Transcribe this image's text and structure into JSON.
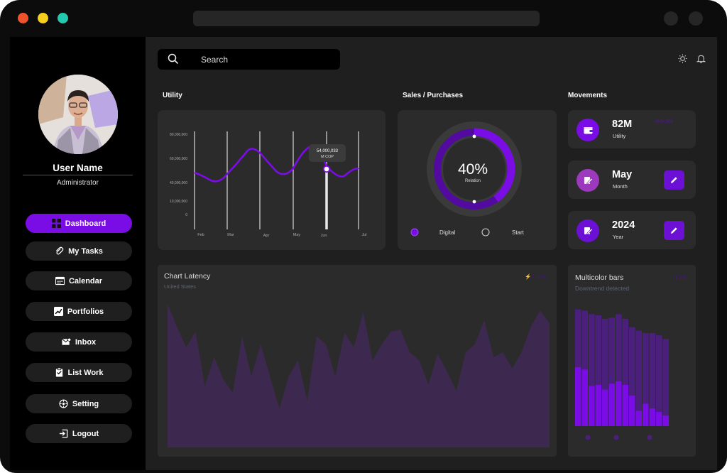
{
  "sidebar": {
    "user_name": "User Name",
    "role": "Administrator",
    "nav": [
      {
        "label": "Dashboard",
        "icon": "grid-icon",
        "active": true
      },
      {
        "label": "My Tasks",
        "icon": "paperclip-icon",
        "active": false
      },
      {
        "label": "Calendar",
        "icon": "calendar-icon",
        "active": false
      },
      {
        "label": "Portfolios",
        "icon": "chart-icon",
        "active": false
      },
      {
        "label": "Inbox",
        "icon": "mail-icon",
        "active": false
      },
      {
        "label": "List Work",
        "icon": "clipboard-icon",
        "active": false
      },
      {
        "label": "Setting",
        "icon": "settings-icon",
        "active": false
      },
      {
        "label": "Logout",
        "icon": "logout-icon",
        "active": false
      }
    ]
  },
  "header": {
    "search_placeholder": "Search",
    "icons": [
      "sun-icon",
      "bell-icon"
    ]
  },
  "utility": {
    "title": "Utility",
    "tooltip_value": "54,000,033",
    "tooltip_unit": "M COP",
    "chart_data": {
      "type": "line",
      "x": [
        "Feb",
        "Mar",
        "Apr",
        "May",
        "Jun",
        "Jul"
      ],
      "y_ticks": [
        "80,000,000",
        "60,000,000",
        "40,000,000",
        "10,000,000",
        "0"
      ],
      "highlighted": "Jun"
    }
  },
  "sales": {
    "title": "Sales / Purchases",
    "percent": "40%",
    "label": "Relation",
    "progress": 0.4,
    "legend": [
      "Digital",
      "Start"
    ]
  },
  "movements": {
    "title": "Movements",
    "items": [
      {
        "value": "82M",
        "sub": "Utility",
        "badge": "+800,000",
        "icon": "wallet-icon",
        "icon_color": "#7a0ce6"
      },
      {
        "value": "May",
        "sub": "Month",
        "icon": "edit-doc-icon",
        "icon_color": "#9c39bd"
      },
      {
        "value": "2024",
        "sub": "Year",
        "icon": "edit-doc-icon",
        "icon_color": "#6d10d6"
      }
    ]
  },
  "latency": {
    "title": "Chart Latency",
    "subtitle": "United States",
    "badge": "1.3ms",
    "chart_data": {
      "type": "area",
      "values": [
        0.89,
        0.75,
        0.62,
        0.72,
        0.38,
        0.56,
        0.42,
        0.34,
        0.69,
        0.44,
        0.64,
        0.44,
        0.24,
        0.44,
        0.54,
        0.29,
        0.69,
        0.64,
        0.44,
        0.71,
        0.62,
        0.84,
        0.54,
        0.64,
        0.72,
        0.73,
        0.59,
        0.54,
        0.39,
        0.58,
        0.47,
        0.35,
        0.59,
        0.64,
        0.79,
        0.56,
        0.59,
        0.49,
        0.59,
        0.75,
        0.85,
        0.77
      ]
    }
  },
  "multicolor": {
    "title": "Multicolor bars",
    "subtitle": "Downtrend detected",
    "badge": "-12$",
    "chart_data": {
      "type": "bar",
      "series": [
        {
          "values": [
            0.99,
            0.98,
            0.95,
            0.94,
            0.91,
            0.92,
            0.95,
            0.91,
            0.84,
            0.81,
            0.79,
            0.79,
            0.77,
            0.74
          ]
        },
        {
          "values": [
            0.5,
            0.48,
            0.34,
            0.35,
            0.31,
            0.36,
            0.38,
            0.35,
            0.26,
            0.13,
            0.19,
            0.15,
            0.12,
            0.09
          ]
        }
      ]
    }
  }
}
